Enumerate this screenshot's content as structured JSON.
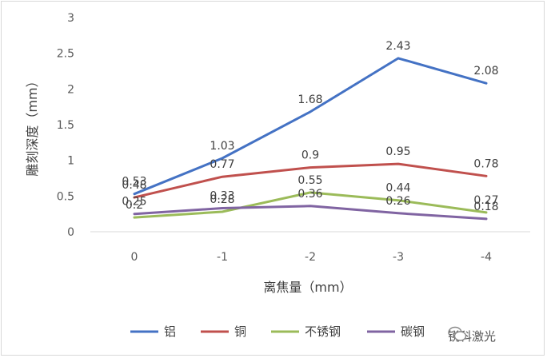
{
  "chart_data": {
    "type": "line",
    "title": "",
    "xlabel": "离焦量（mm）",
    "ylabel": "雕刻深度（mm）",
    "categories": [
      "0",
      "-1",
      "-2",
      "-3",
      "-4"
    ],
    "yticks": [
      "0",
      "0.5",
      "1",
      "1.5",
      "2",
      "2.5",
      "3"
    ],
    "ylim": [
      0,
      3
    ],
    "grid": false,
    "legend_position": "bottom",
    "series": [
      {
        "name": "铝",
        "color": "#4472c4",
        "values": [
          0.53,
          1.03,
          1.68,
          2.43,
          2.08
        ]
      },
      {
        "name": "铜",
        "color": "#c0504d",
        "values": [
          0.48,
          0.77,
          0.9,
          0.95,
          0.78
        ]
      },
      {
        "name": "不锈钢",
        "color": "#9bbb59",
        "values": [
          0.2,
          0.28,
          0.55,
          0.44,
          0.27
        ]
      },
      {
        "name": "碳钢",
        "color": "#8064a2",
        "values": [
          0.25,
          0.33,
          0.36,
          0.26,
          0.18
        ]
      }
    ]
  },
  "watermark": {
    "text": "锐科激光",
    "icon": "wechat-icon"
  }
}
